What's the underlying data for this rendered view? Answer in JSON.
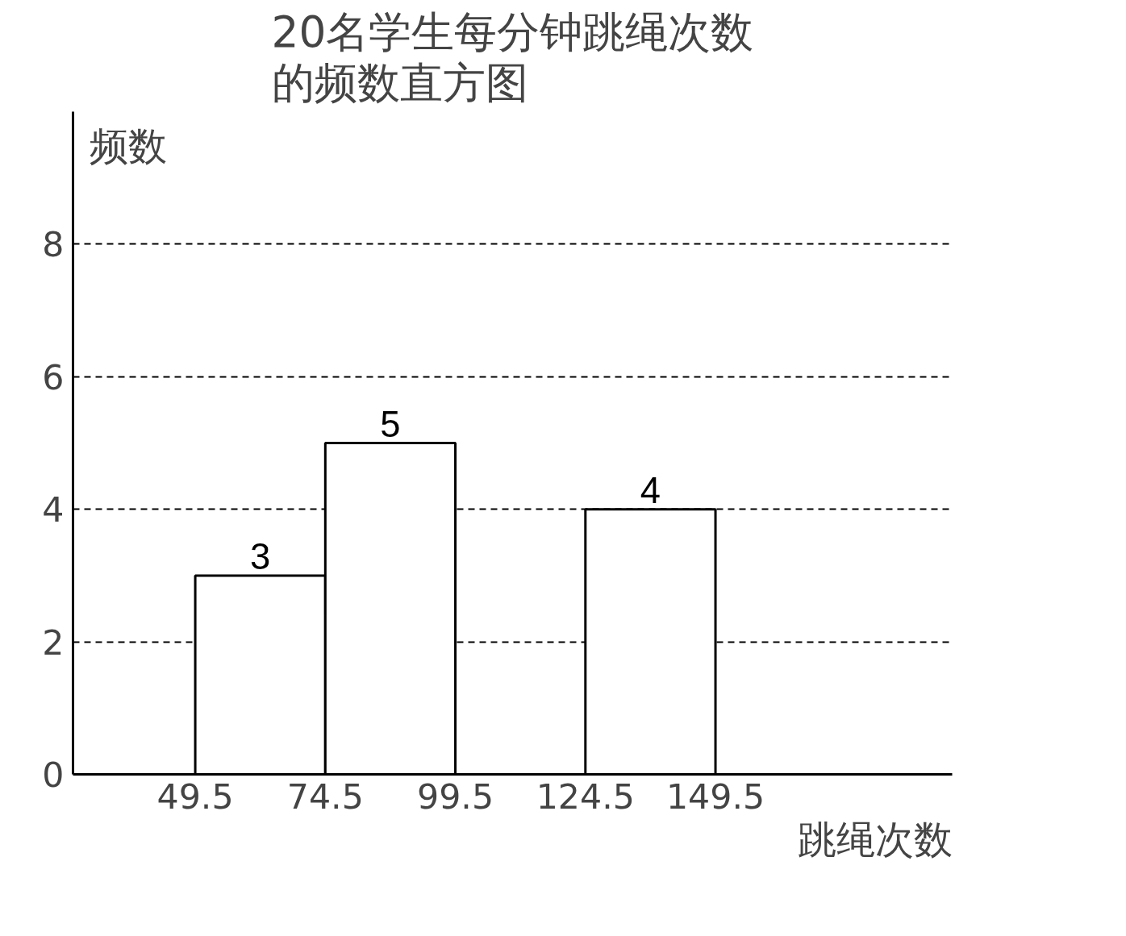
{
  "chart_data": {
    "type": "histogram",
    "title": "20名学生每分钟跳绳次数的频数直方图",
    "xlabel": "跳绳次数",
    "ylabel": "频数",
    "bins": [
      49.5,
      74.5,
      99.5,
      124.5,
      149.5
    ],
    "values": [
      3,
      5,
      null,
      4
    ],
    "color": "#ffffff",
    "xlim": [
      26,
      195
    ],
    "ylim": [
      0,
      10
    ],
    "xticks": [
      49.5,
      74.5,
      99.5,
      124.5,
      149.5
    ],
    "yticks": [
      0,
      2,
      4,
      6,
      8
    ],
    "grid": "y",
    "data_labels": true
  }
}
